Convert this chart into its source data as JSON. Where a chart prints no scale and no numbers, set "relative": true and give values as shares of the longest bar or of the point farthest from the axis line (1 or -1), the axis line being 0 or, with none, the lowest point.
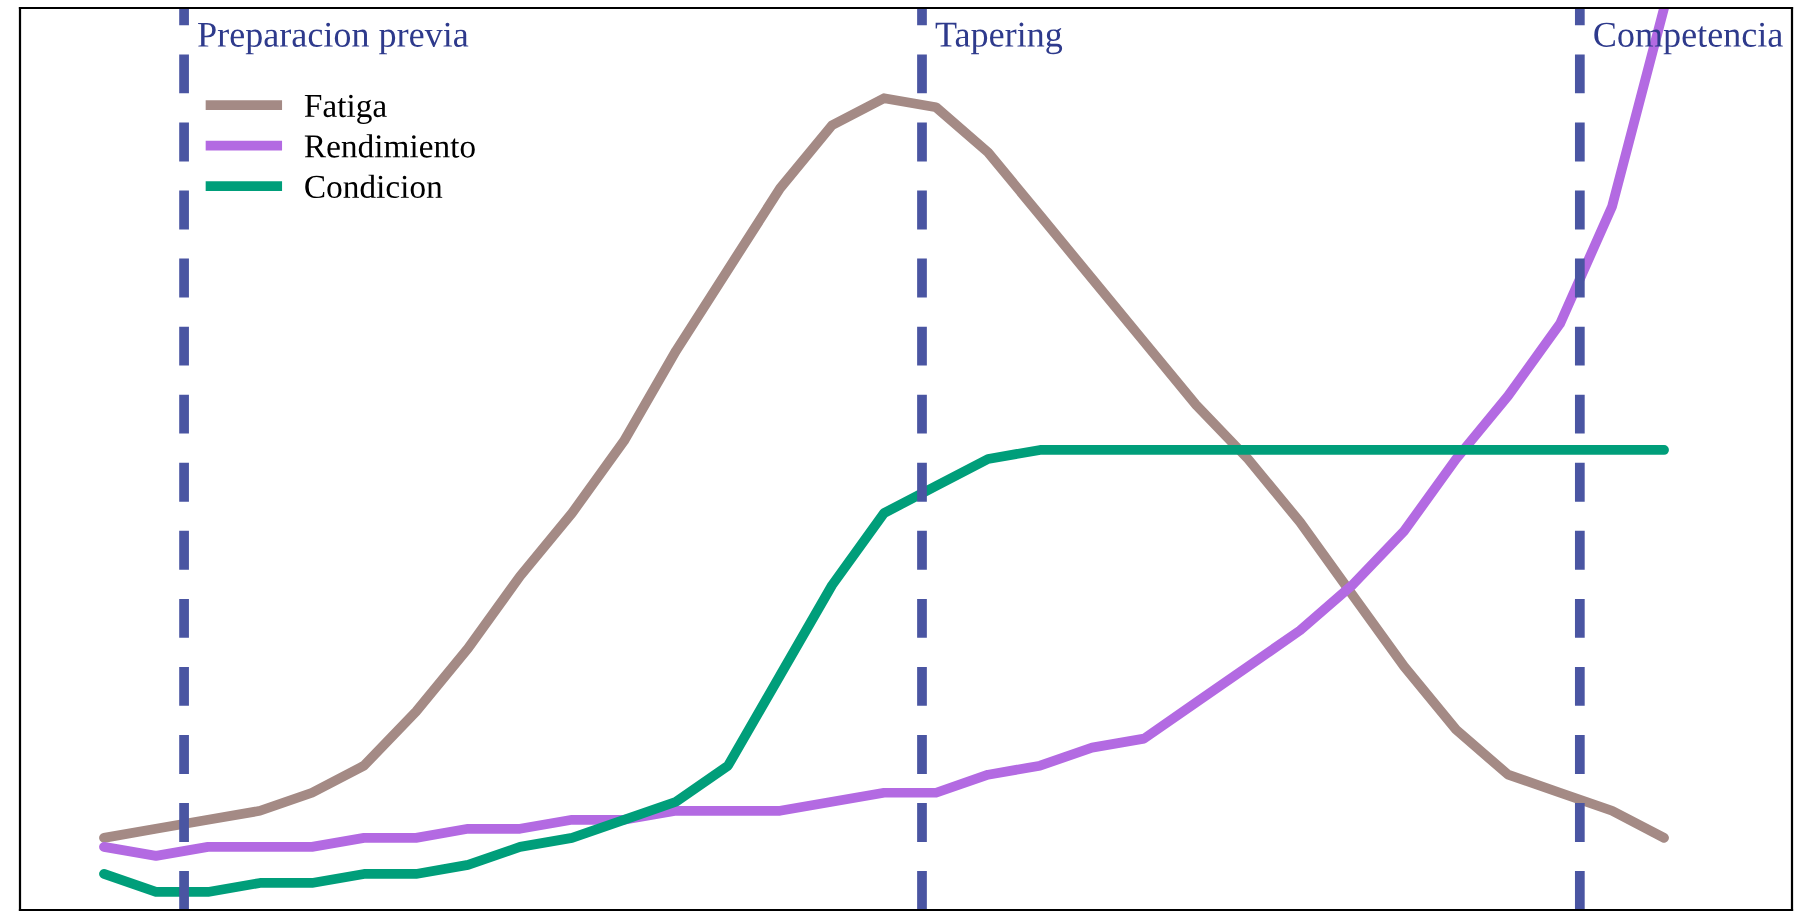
{
  "chart_data": {
    "type": "line",
    "relative": true,
    "categories": [
      null,
      null,
      null,
      null,
      null,
      null,
      null,
      null,
      null,
      null,
      null,
      null,
      null,
      null,
      null,
      null,
      null,
      null,
      null,
      null,
      null,
      null,
      null,
      null,
      null,
      null,
      null,
      null,
      null,
      null,
      null
    ],
    "series": [
      {
        "name": "Fatiga",
        "color": "#a48a85",
        "values": [
          0.08,
          0.09,
          0.1,
          0.11,
          0.13,
          0.16,
          0.22,
          0.29,
          0.37,
          0.44,
          0.52,
          0.62,
          0.71,
          0.8,
          0.87,
          0.9,
          0.89,
          0.84,
          0.77,
          0.7,
          0.63,
          0.56,
          0.5,
          0.43,
          0.35,
          0.27,
          0.2,
          0.15,
          0.13,
          0.11,
          0.08
        ]
      },
      {
        "name": "Rendimiento",
        "color": "#b36ae2",
        "values": [
          0.07,
          0.06,
          0.07,
          0.07,
          0.07,
          0.08,
          0.08,
          0.09,
          0.09,
          0.1,
          0.1,
          0.11,
          0.11,
          0.11,
          0.12,
          0.13,
          0.13,
          0.15,
          0.16,
          0.18,
          0.19,
          0.23,
          0.27,
          0.31,
          0.36,
          0.42,
          0.5,
          0.57,
          0.65,
          0.78,
          1
        ]
      },
      {
        "name": "Condicion",
        "color": "#009e7a",
        "values": [
          0.04,
          0.02,
          0.02,
          0.03,
          0.03,
          0.04,
          0.04,
          0.05,
          0.07,
          0.08,
          0.1,
          0.12,
          0.16,
          0.26,
          0.36,
          0.44,
          0.47,
          0.5,
          0.51,
          0.51,
          0.51,
          0.51,
          0.51,
          0.51,
          0.51,
          0.51,
          0.51,
          0.51,
          0.51,
          0.51,
          0.51
        ]
      }
    ],
    "annotations": [
      "Preparacion previa",
      "Tapering",
      "Competencia"
    ],
    "legend": "top left",
    "line_style": "solid",
    "marker": "none"
  }
}
